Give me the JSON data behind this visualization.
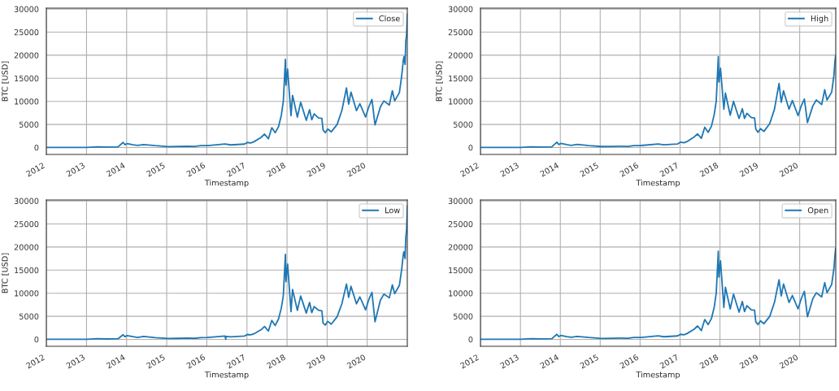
{
  "chart_data": [
    {
      "type": "line",
      "xlabel": "Timestamp",
      "ylabel": "BTC [USD]",
      "xlim": [
        "2012-01-01",
        "2020-12-31"
      ],
      "ylim": [
        -1500,
        30200
      ],
      "yticks": [
        0,
        5000,
        10000,
        15000,
        20000,
        25000,
        30000
      ],
      "xticks": [
        "2012",
        "2013",
        "2014",
        "2015",
        "2016",
        "2017",
        "2018",
        "2019",
        "2020"
      ],
      "grid": true,
      "legend": "top right",
      "series": [
        {
          "name": "Close",
          "color": "#1f77b4",
          "x": [
            "2012-01-01",
            "2013-01-01",
            "2013-04-10",
            "2013-07-05",
            "2013-10-15",
            "2013-11-30",
            "2013-12-18",
            "2014-01-05",
            "2014-03-01",
            "2014-04-10",
            "2014-06-05",
            "2014-09-20",
            "2015-01-14",
            "2015-04-10",
            "2015-07-10",
            "2015-09-10",
            "2015-11-05",
            "2016-01-10",
            "2016-06-15",
            "2016-08-05",
            "2016-12-10",
            "2017-01-04",
            "2017-02-05",
            "2017-03-05",
            "2017-05-10",
            "2017-06-10",
            "2017-07-15",
            "2017-08-15",
            "2017-09-15",
            "2017-10-15",
            "2017-11-10",
            "2017-11-28",
            "2017-12-17",
            "2017-12-22",
            "2018-01-06",
            "2018-02-06",
            "2018-02-20",
            "2018-04-05",
            "2018-05-05",
            "2018-06-25",
            "2018-07-25",
            "2018-08-14",
            "2018-09-05",
            "2018-10-15",
            "2018-11-14",
            "2018-11-25",
            "2018-12-15",
            "2019-01-07",
            "2019-02-08",
            "2019-04-02",
            "2019-05-15",
            "2019-06-26",
            "2019-07-16",
            "2019-08-06",
            "2019-09-25",
            "2019-10-26",
            "2019-12-17",
            "2020-01-15",
            "2020-02-13",
            "2020-03-12",
            "2020-04-30",
            "2020-06-01",
            "2020-07-20",
            "2020-08-17",
            "2020-09-07",
            "2020-10-20",
            "2020-11-10",
            "2020-11-25",
            "2020-12-01",
            "2020-12-11",
            "2020-12-17",
            "2020-12-25",
            "2020-12-31"
          ],
          "values": [
            5,
            13,
            150,
            90,
            140,
            1100,
            600,
            850,
            600,
            450,
            650,
            400,
            200,
            230,
            280,
            230,
            400,
            430,
            750,
            570,
            750,
            1100,
            1000,
            1250,
            2200,
            2900,
            1900,
            4300,
            3200,
            4500,
            7000,
            10000,
            19100,
            13500,
            17000,
            6900,
            11300,
            6600,
            9800,
            5900,
            8200,
            6000,
            7300,
            6400,
            6300,
            3800,
            3200,
            4000,
            3400,
            5000,
            8000,
            12900,
            9400,
            12000,
            8000,
            9500,
            6600,
            8800,
            10400,
            4900,
            8800,
            10100,
            9200,
            12300,
            10100,
            11900,
            15500,
            19000,
            19700,
            18000,
            23000,
            24500,
            29000
          ]
        }
      ]
    },
    {
      "type": "line",
      "xlabel": "Timestamp",
      "ylabel": "BTC [USD]",
      "xlim": [
        "2012-01-01",
        "2020-11-26"
      ],
      "ylim": [
        -1500,
        30200
      ],
      "yticks": [
        0,
        5000,
        10000,
        15000,
        20000,
        25000,
        30000
      ],
      "xticks": [
        "2012",
        "2013",
        "2014",
        "2015",
        "2016",
        "2017",
        "2018",
        "2019",
        "2020"
      ],
      "grid": true,
      "legend": "top right",
      "series": [
        {
          "name": "High",
          "color": "#1f77b4",
          "x": [
            "2012-01-01",
            "2013-01-01",
            "2013-04-10",
            "2013-07-05",
            "2013-10-15",
            "2013-11-30",
            "2013-12-18",
            "2014-01-05",
            "2014-03-01",
            "2014-04-10",
            "2014-06-05",
            "2014-09-20",
            "2015-01-14",
            "2015-04-10",
            "2015-07-10",
            "2015-09-10",
            "2015-11-05",
            "2016-01-10",
            "2016-06-15",
            "2016-08-05",
            "2016-12-10",
            "2017-01-04",
            "2017-02-05",
            "2017-03-05",
            "2017-05-10",
            "2017-06-10",
            "2017-07-15",
            "2017-08-15",
            "2017-09-15",
            "2017-10-15",
            "2017-11-10",
            "2017-11-28",
            "2017-12-17",
            "2017-12-22",
            "2018-01-06",
            "2018-02-06",
            "2018-02-20",
            "2018-04-05",
            "2018-05-05",
            "2018-06-25",
            "2018-07-25",
            "2018-08-14",
            "2018-09-05",
            "2018-10-15",
            "2018-11-14",
            "2018-11-25",
            "2018-12-15",
            "2019-01-07",
            "2019-02-08",
            "2019-04-02",
            "2019-05-15",
            "2019-06-26",
            "2019-07-16",
            "2019-08-06",
            "2019-09-25",
            "2019-10-26",
            "2019-12-17",
            "2020-01-15",
            "2020-02-13",
            "2020-03-12",
            "2020-04-30",
            "2020-06-01",
            "2020-07-20",
            "2020-08-17",
            "2020-09-07",
            "2020-10-20",
            "2020-11-10",
            "2020-11-18",
            "2020-11-25"
          ],
          "values": [
            5,
            13,
            160,
            95,
            145,
            1150,
            650,
            880,
            620,
            470,
            670,
            420,
            220,
            240,
            290,
            240,
            420,
            440,
            780,
            590,
            770,
            1150,
            1020,
            1280,
            2300,
            2950,
            2000,
            4400,
            3300,
            4600,
            7200,
            10100,
            19700,
            14200,
            17200,
            8300,
            11800,
            7000,
            10000,
            6300,
            8400,
            6300,
            7400,
            6500,
            6400,
            4000,
            3300,
            4100,
            3500,
            5200,
            8300,
            13900,
            9800,
            12300,
            8300,
            10200,
            6900,
            9000,
            10500,
            5400,
            9000,
            10300,
            9300,
            12500,
            10300,
            12000,
            15800,
            18500,
            19900
          ]
        }
      ]
    },
    {
      "type": "line",
      "xlabel": "Timestamp",
      "ylabel": "BTC [USD]",
      "xlim": [
        "2012-01-01",
        "2020-12-31"
      ],
      "ylim": [
        -1500,
        30200
      ],
      "yticks": [
        0,
        5000,
        10000,
        15000,
        20000,
        25000,
        30000
      ],
      "xticks": [
        "2012",
        "2013",
        "2014",
        "2015",
        "2016",
        "2017",
        "2018",
        "2019",
        "2020"
      ],
      "grid": true,
      "legend": "top right",
      "series": [
        {
          "name": "Low",
          "color": "#1f77b4",
          "x": [
            "2012-01-01",
            "2013-01-01",
            "2013-04-10",
            "2013-07-05",
            "2013-10-15",
            "2013-11-30",
            "2013-12-18",
            "2014-01-05",
            "2014-03-01",
            "2014-04-10",
            "2014-06-05",
            "2014-09-20",
            "2015-01-14",
            "2015-04-10",
            "2015-07-10",
            "2015-09-10",
            "2015-11-05",
            "2016-01-10",
            "2016-06-15",
            "2016-06-22",
            "2016-06-23",
            "2016-08-05",
            "2016-12-10",
            "2017-01-04",
            "2017-02-05",
            "2017-03-05",
            "2017-05-10",
            "2017-06-10",
            "2017-07-15",
            "2017-08-15",
            "2017-09-15",
            "2017-10-15",
            "2017-11-10",
            "2017-11-28",
            "2017-12-17",
            "2017-12-22",
            "2018-01-06",
            "2018-02-06",
            "2018-02-20",
            "2018-04-05",
            "2018-05-05",
            "2018-06-25",
            "2018-07-25",
            "2018-08-14",
            "2018-09-05",
            "2018-10-15",
            "2018-11-14",
            "2018-11-25",
            "2018-12-15",
            "2019-01-07",
            "2019-02-08",
            "2019-04-02",
            "2019-05-15",
            "2019-06-26",
            "2019-07-16",
            "2019-08-06",
            "2019-09-25",
            "2019-10-26",
            "2019-12-17",
            "2020-01-15",
            "2020-02-13",
            "2020-03-12",
            "2020-04-30",
            "2020-06-01",
            "2020-07-20",
            "2020-08-17",
            "2020-09-07",
            "2020-10-20",
            "2020-11-10",
            "2020-11-25",
            "2020-12-01",
            "2020-12-11",
            "2020-12-17",
            "2020-12-25",
            "2020-12-31"
          ],
          "values": [
            4,
            12,
            140,
            85,
            135,
            1000,
            550,
            820,
            580,
            430,
            630,
            380,
            180,
            220,
            270,
            220,
            380,
            410,
            720,
            0,
            650,
            560,
            730,
            1050,
            980,
            1200,
            2100,
            2800,
            1800,
            4100,
            3000,
            4400,
            6800,
            9500,
            18400,
            12500,
            16300,
            6000,
            10800,
            6300,
            9400,
            5700,
            8000,
            5800,
            7100,
            6300,
            6200,
            3500,
            3100,
            3900,
            3300,
            4900,
            7700,
            12000,
            9100,
            11500,
            7700,
            9200,
            6400,
            8600,
            10200,
            3800,
            8500,
            9800,
            9000,
            11800,
            9900,
            11700,
            15200,
            18500,
            19000,
            17500,
            22000,
            23800,
            29000
          ]
        }
      ]
    },
    {
      "type": "line",
      "xlabel": "Timestamp",
      "ylabel": null,
      "xlim": [
        "2012-01-01",
        "2020-11-26"
      ],
      "ylim": [
        -1500,
        30200
      ],
      "yticks": [
        0,
        5000,
        10000,
        15000,
        20000,
        25000,
        30000
      ],
      "xticks": [
        "2012",
        "2013",
        "2014",
        "2015",
        "2016",
        "2017",
        "2018",
        "2019",
        "2020"
      ],
      "grid": true,
      "legend": "top right",
      "series": [
        {
          "name": "Open",
          "color": "#1f77b4",
          "x": [
            "2012-01-01",
            "2013-01-01",
            "2013-04-10",
            "2013-07-05",
            "2013-10-15",
            "2013-11-30",
            "2013-12-18",
            "2014-01-05",
            "2014-03-01",
            "2014-04-10",
            "2014-06-05",
            "2014-09-20",
            "2015-01-14",
            "2015-04-10",
            "2015-07-10",
            "2015-09-10",
            "2015-11-05",
            "2016-01-10",
            "2016-06-15",
            "2016-08-05",
            "2016-12-10",
            "2017-01-04",
            "2017-02-05",
            "2017-03-05",
            "2017-05-10",
            "2017-06-10",
            "2017-07-15",
            "2017-08-15",
            "2017-09-15",
            "2017-10-15",
            "2017-11-10",
            "2017-11-28",
            "2017-12-17",
            "2017-12-22",
            "2018-01-06",
            "2018-02-06",
            "2018-02-20",
            "2018-04-05",
            "2018-05-05",
            "2018-06-25",
            "2018-07-25",
            "2018-08-14",
            "2018-09-05",
            "2018-10-15",
            "2018-11-14",
            "2018-11-25",
            "2018-12-15",
            "2019-01-07",
            "2019-02-08",
            "2019-04-02",
            "2019-05-15",
            "2019-06-26",
            "2019-07-16",
            "2019-08-06",
            "2019-09-25",
            "2019-10-26",
            "2019-12-17",
            "2020-01-15",
            "2020-02-13",
            "2020-03-12",
            "2020-04-30",
            "2020-06-01",
            "2020-07-20",
            "2020-08-17",
            "2020-09-07",
            "2020-10-20",
            "2020-11-10",
            "2020-11-18",
            "2020-11-25"
          ],
          "values": [
            5,
            13,
            150,
            90,
            140,
            1100,
            600,
            850,
            600,
            450,
            650,
            400,
            200,
            230,
            280,
            230,
            400,
            430,
            750,
            570,
            750,
            1100,
            1000,
            1250,
            2200,
            2900,
            1900,
            4300,
            3200,
            4500,
            7000,
            10000,
            19100,
            13500,
            17000,
            6900,
            11300,
            6600,
            9800,
            5900,
            8200,
            6000,
            7300,
            6400,
            6300,
            3800,
            3200,
            4000,
            3400,
            5000,
            8000,
            12900,
            9400,
            12000,
            8000,
            9500,
            6600,
            8800,
            10400,
            4900,
            8800,
            10100,
            9200,
            12300,
            10100,
            11900,
            15500,
            18000,
            19700
          ]
        }
      ]
    }
  ]
}
